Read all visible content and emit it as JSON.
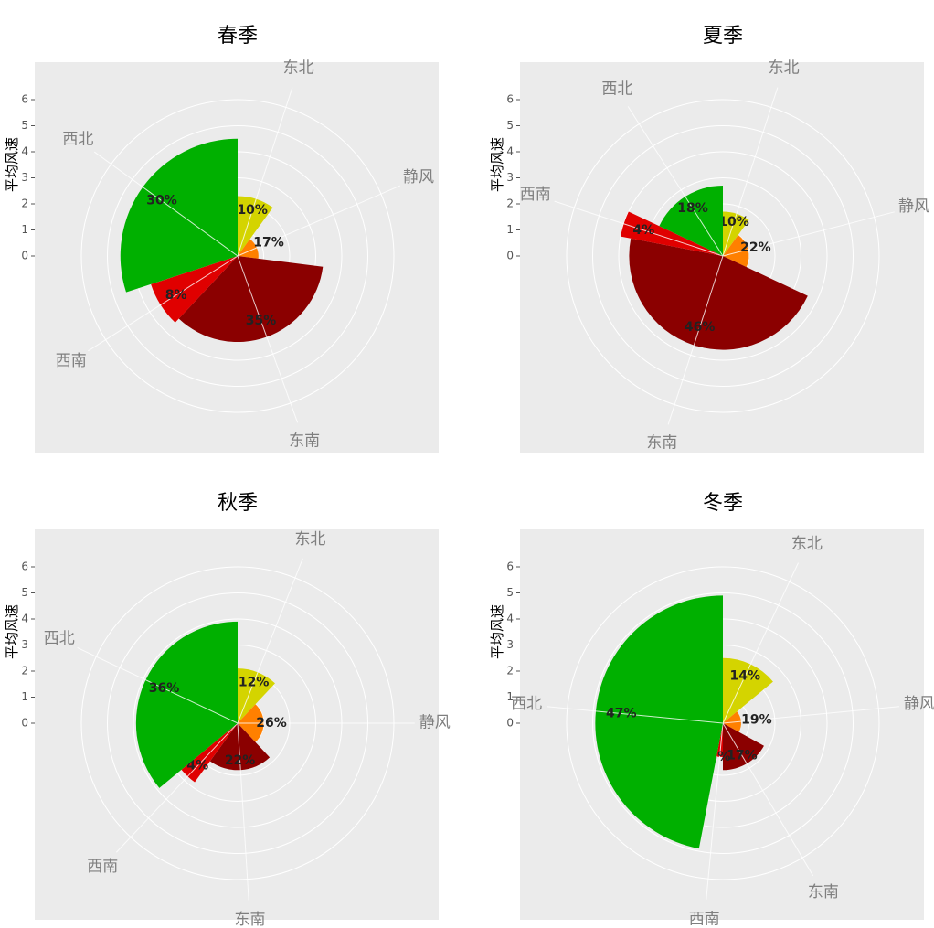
{
  "chart_data": [
    {
      "type": "polar-bar",
      "title": "春季",
      "ylabel": "平均风速",
      "categories": [
        "东北",
        "静风",
        "东南",
        "西南",
        "西北"
      ],
      "colors": [
        "#d4d400",
        "#ff8000",
        "#8b0000",
        "#e00000",
        "#00b000"
      ],
      "values": [
        2.3,
        0.8,
        3.3,
        3.5,
        4.5
      ],
      "shares": [
        10,
        17,
        35,
        8,
        30
      ],
      "share_labels": [
        "10%",
        "17%",
        "35%",
        "8%",
        "30%"
      ],
      "ylim": [
        0,
        6.8
      ],
      "yticks": [
        0,
        1,
        2,
        3,
        4,
        5,
        6
      ],
      "grid": true
    },
    {
      "type": "polar-bar",
      "title": "夏季",
      "ylabel": "平均风速",
      "categories": [
        "东北",
        "静风",
        "东南",
        "西南",
        "西北"
      ],
      "colors": [
        "#d4d400",
        "#ff8000",
        "#8b0000",
        "#e00000",
        "#00b000"
      ],
      "values": [
        1.7,
        1.0,
        3.6,
        4.0,
        2.7
      ],
      "shares": [
        10,
        22,
        46,
        4,
        18
      ],
      "share_labels": [
        "10%",
        "22%",
        "46%",
        "4%",
        "18%"
      ],
      "ylim": [
        0,
        6.8
      ],
      "yticks": [
        0,
        1,
        2,
        3,
        4,
        5,
        6
      ],
      "grid": true
    },
    {
      "type": "polar-bar",
      "title": "秋季",
      "ylabel": "平均风速",
      "categories": [
        "东北",
        "静风",
        "东南",
        "西南",
        "西北"
      ],
      "colors": [
        "#d4d400",
        "#ff8000",
        "#8b0000",
        "#e00000",
        "#00b000"
      ],
      "values": [
        2.1,
        1.0,
        1.8,
        2.8,
        3.9
      ],
      "shares": [
        12,
        26,
        22,
        4,
        36
      ],
      "share_labels": [
        "12%",
        "26%",
        "22%",
        "4%",
        "36%"
      ],
      "ylim": [
        0,
        6.8
      ],
      "yticks": [
        0,
        1,
        2,
        3,
        4,
        5,
        6
      ],
      "grid": true
    },
    {
      "type": "polar-bar",
      "title": "冬季",
      "ylabel": "平均风速",
      "categories": [
        "东北",
        "静风",
        "东南",
        "西南",
        "西北"
      ],
      "colors": [
        "#d4d400",
        "#ff8000",
        "#8b0000",
        "#e00000",
        "#00b000"
      ],
      "values": [
        2.5,
        0.7,
        1.8,
        1.3,
        4.9
      ],
      "shares": [
        14,
        19,
        17,
        3,
        47
      ],
      "share_labels": [
        "14%",
        "19%",
        "17%",
        "3%",
        "47%"
      ],
      "ylim": [
        0,
        6.8
      ],
      "yticks": [
        0,
        1,
        2,
        3,
        4,
        5,
        6
      ],
      "grid": true
    }
  ]
}
